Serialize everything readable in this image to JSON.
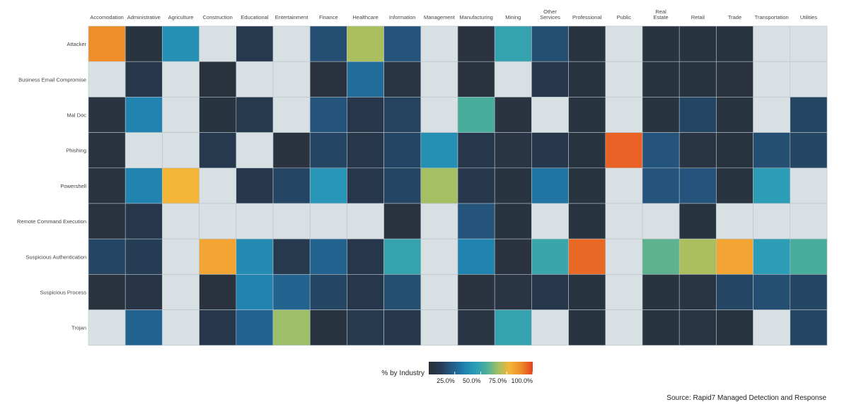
{
  "chart_data": {
    "type": "heatmap",
    "columns": [
      "Accomodation",
      "Administrative",
      "Agriculture",
      "Construction",
      "Educational",
      "Entertainment",
      "Finance",
      "Healthcare",
      "Information",
      "Management",
      "Manufacturing",
      "Mining",
      "Other Services",
      "Professional",
      "Public",
      "Real Estate",
      "Retail",
      "Trade",
      "Transportation",
      "Utilities"
    ],
    "rows": [
      "Attacker",
      "Business Email Compromise",
      "Mal Doc",
      "Phishing",
      "Powershell",
      "Remote Command Execution",
      "Suspicious Authentication",
      "Suspicious Process",
      "Trojan"
    ],
    "values": [
      [
        88,
        4,
        40,
        null,
        10,
        null,
        18,
        68,
        20,
        null,
        3,
        48,
        18,
        4,
        null,
        4,
        4,
        4,
        null,
        null
      ],
      [
        null,
        8,
        null,
        2,
        null,
        null,
        2,
        28,
        5,
        null,
        2,
        null,
        8,
        4,
        null,
        4,
        4,
        3,
        null,
        null
      ],
      [
        3,
        35,
        null,
        4,
        10,
        null,
        20,
        8,
        14,
        null,
        55,
        3,
        null,
        4,
        null,
        4,
        15,
        4,
        null,
        15
      ],
      [
        2,
        null,
        null,
        10,
        null,
        3,
        15,
        8,
        15,
        40,
        8,
        5,
        8,
        4,
        95,
        20,
        5,
        4,
        18,
        15
      ],
      [
        2,
        35,
        78,
        null,
        8,
        15,
        42,
        8,
        15,
        67,
        8,
        4,
        30,
        4,
        null,
        20,
        20,
        4,
        45,
        null
      ],
      [
        2,
        8,
        null,
        null,
        null,
        null,
        null,
        null,
        3,
        null,
        20,
        4,
        null,
        4,
        null,
        null,
        4,
        null,
        null,
        null
      ],
      [
        15,
        12,
        null,
        82,
        38,
        10,
        25,
        8,
        48,
        null,
        35,
        3,
        50,
        94,
        null,
        58,
        68,
        82,
        45,
        55
      ],
      [
        2,
        6,
        null,
        2,
        35,
        25,
        15,
        8,
        18,
        null,
        3,
        5,
        8,
        4,
        null,
        4,
        5,
        15,
        18,
        15
      ],
      [
        null,
        25,
        null,
        8,
        25,
        66,
        4,
        10,
        8,
        null,
        5,
        48,
        null,
        4,
        null,
        4,
        5,
        4,
        null,
        15
      ]
    ],
    "missing_color": "#d8e0e3",
    "colorbar": {
      "title": "% by Industry",
      "ticks": [
        "25.0%",
        "50.0%",
        "75.0%",
        "100.0%"
      ],
      "tick_values": [
        25,
        50,
        75,
        100
      ],
      "range": [
        0,
        100
      ],
      "stops": [
        "#2b3038",
        "#263a52",
        "#235a85",
        "#1f7fae",
        "#2a9cb8",
        "#4aae9c",
        "#a2c064",
        "#f3b537",
        "#f08a2a",
        "#e3401f"
      ]
    }
  },
  "source_text": "Source: Rapid7 Managed Detection and Response"
}
